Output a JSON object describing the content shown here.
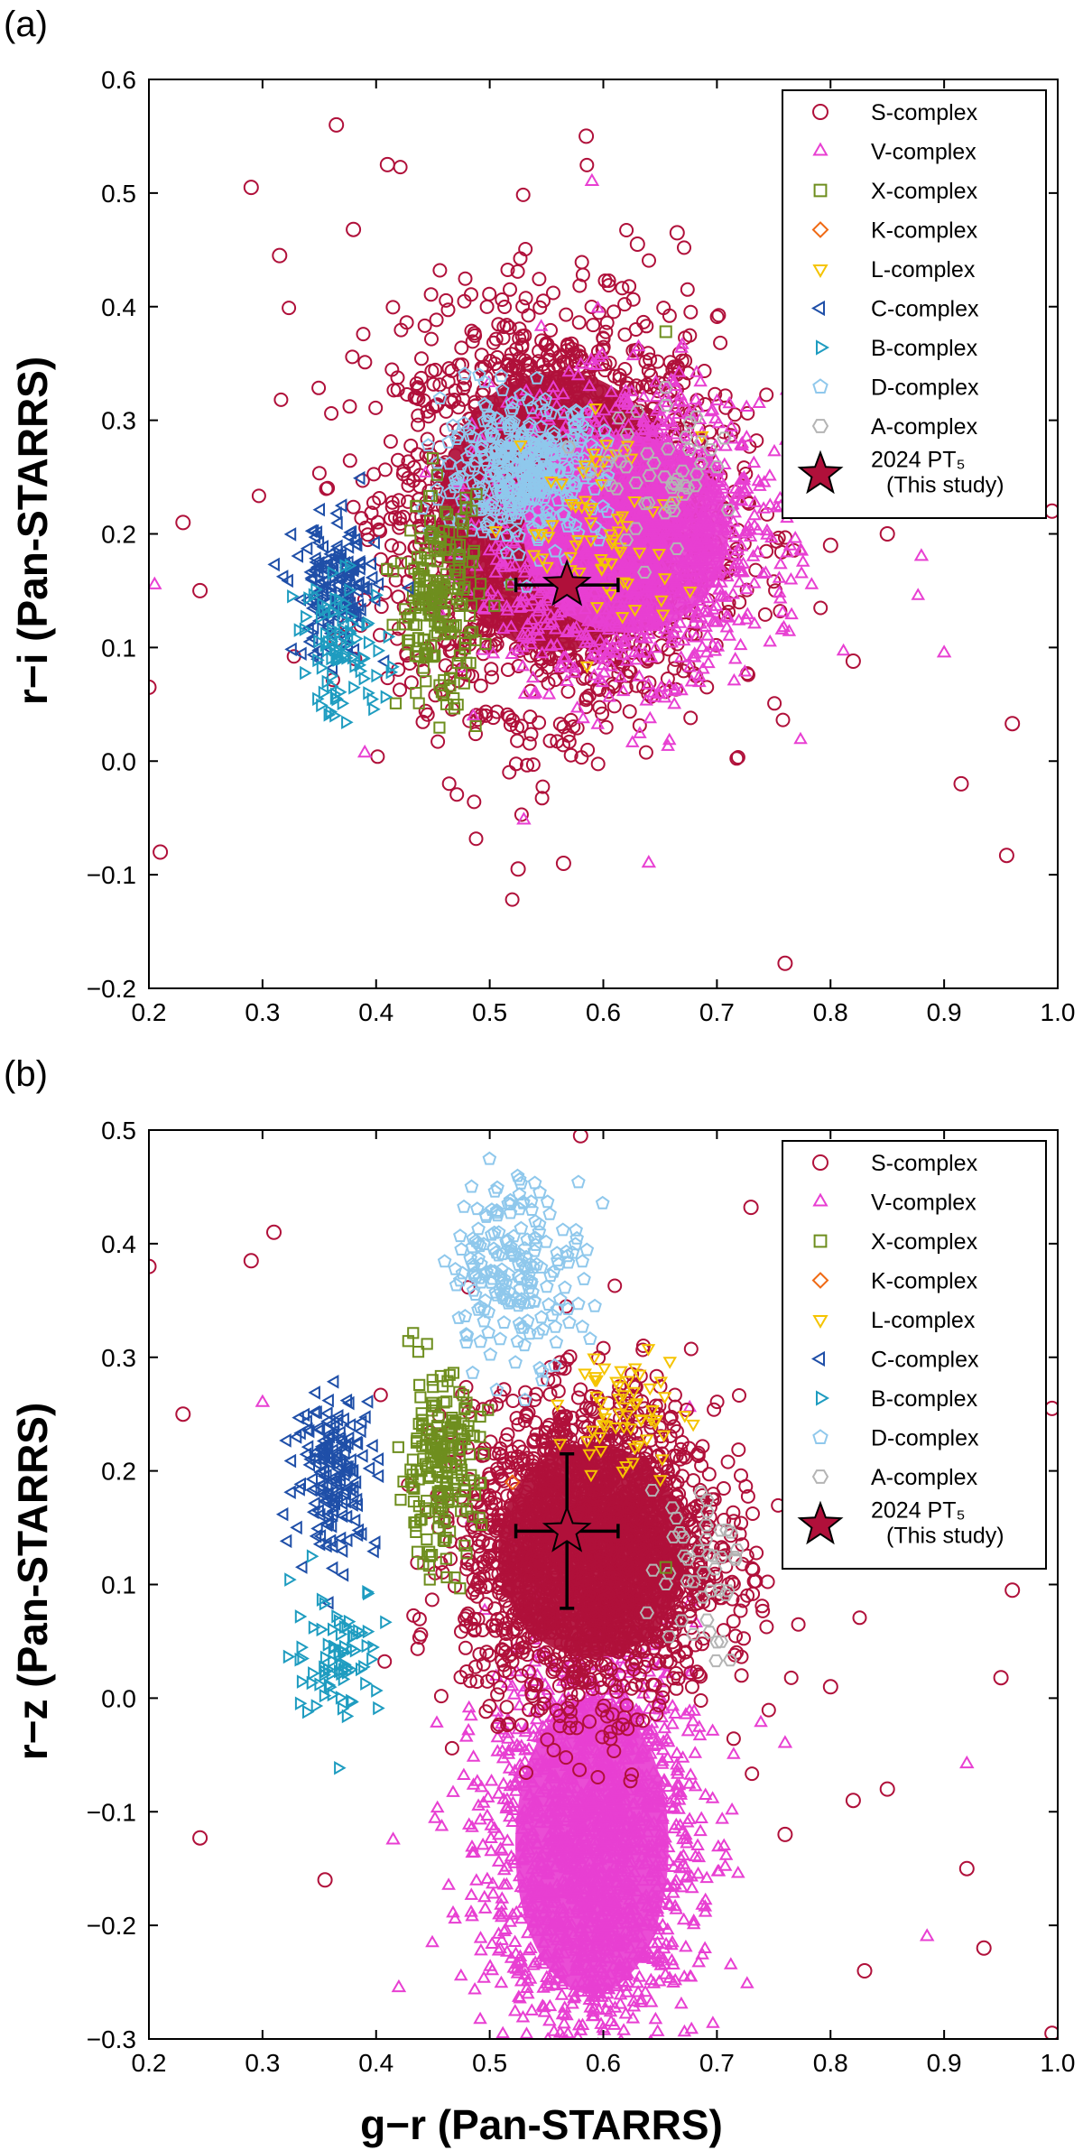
{
  "figure": {
    "panel_labels": [
      "(a)",
      "(b)"
    ],
    "shared_xlabel": "g−r  (Pan-STARRS)"
  },
  "chart_data": [
    {
      "type": "scatter",
      "panel": "(a)",
      "title": "",
      "xlabel": "g−r  (Pan-STARRS)",
      "ylabel": "r−i  (Pan-STARRS)",
      "xlim": [
        0.2,
        1.0
      ],
      "ylim": [
        -0.2,
        0.6
      ],
      "xticks": [
        "0.2",
        "0.3",
        "0.4",
        "0.5",
        "0.6",
        "0.7",
        "0.8",
        "0.9",
        "1.0"
      ],
      "yticks": [
        "−0.2",
        "−0.1",
        "0.0",
        "0.1",
        "0.2",
        "0.3",
        "0.4",
        "0.5",
        "0.6"
      ],
      "grid": false,
      "legend_position": "top-right",
      "legend": [
        {
          "label": "S-complex",
          "marker": "circle",
          "color": "#B0103A"
        },
        {
          "label": "V-complex",
          "marker": "triangle-up",
          "color": "#E83FD2"
        },
        {
          "label": "X-complex",
          "marker": "square",
          "color": "#6E8E1E"
        },
        {
          "label": "K-complex",
          "marker": "diamond",
          "color": "#F06A14"
        },
        {
          "label": "L-complex",
          "marker": "triangle-down",
          "color": "#F5C400"
        },
        {
          "label": "C-complex",
          "marker": "triangle-left",
          "color": "#1F4FA8"
        },
        {
          "label": "B-complex",
          "marker": "triangle-right",
          "color": "#1E9CC0"
        },
        {
          "label": "D-complex",
          "marker": "pentagon",
          "color": "#8FC8EC"
        },
        {
          "label": "A-complex",
          "marker": "hexagon",
          "color": "#B4B4B4"
        },
        {
          "label_line1": "2024 PT₅",
          "label_line2": "(This study)",
          "marker": "star",
          "color": "#B0103A"
        }
      ],
      "highlight": {
        "name": "2024 PT₅",
        "x": 0.568,
        "y": 0.155,
        "xerr": 0.045,
        "yerr": 0.0
      },
      "clusters": [
        {
          "series": "S-complex",
          "marker": "circle",
          "color": "#B0103A",
          "cx": 0.56,
          "cy": 0.22,
          "sx": 0.07,
          "sy": 0.085,
          "n": 2400,
          "dense_core": 0.6
        },
        {
          "series": "V-complex",
          "marker": "triangle-up",
          "color": "#E83FD2",
          "cx": 0.62,
          "cy": 0.2,
          "sx": 0.06,
          "sy": 0.06,
          "n": 1700,
          "dense_core": 0.7
        },
        {
          "series": "D-complex",
          "marker": "pentagon",
          "color": "#8FC8EC",
          "cx": 0.53,
          "cy": 0.255,
          "sx": 0.035,
          "sy": 0.03,
          "n": 380,
          "dense_core": 0
        },
        {
          "series": "L-complex",
          "marker": "triangle-down",
          "color": "#F5C400",
          "cx": 0.6,
          "cy": 0.2,
          "sx": 0.035,
          "sy": 0.05,
          "n": 70,
          "dense_core": 0
        },
        {
          "series": "A-complex",
          "marker": "hexagon",
          "color": "#B4B4B4",
          "cx": 0.66,
          "cy": 0.25,
          "sx": 0.03,
          "sy": 0.03,
          "n": 50,
          "dense_core": 0
        },
        {
          "series": "X-complex",
          "marker": "square",
          "color": "#6E8E1E",
          "cx": 0.455,
          "cy": 0.14,
          "sx": 0.018,
          "sy": 0.045,
          "n": 190,
          "dense_core": 0
        },
        {
          "series": "C-complex",
          "marker": "triangle-left",
          "color": "#1F4FA8",
          "cx": 0.365,
          "cy": 0.15,
          "sx": 0.018,
          "sy": 0.03,
          "n": 160,
          "dense_core": 0
        },
        {
          "series": "B-complex",
          "marker": "triangle-right",
          "color": "#1E9CC0",
          "cx": 0.37,
          "cy": 0.1,
          "sx": 0.02,
          "sy": 0.03,
          "n": 90,
          "dense_core": 0
        }
      ],
      "outliers": [
        {
          "series": "S-complex",
          "marker": "circle",
          "color": "#B0103A",
          "points": [
            [
              0.365,
              0.56
            ],
            [
              0.29,
              0.505
            ],
            [
              0.41,
              0.525
            ],
            [
              0.315,
              0.445
            ],
            [
              0.38,
              0.468
            ],
            [
              0.585,
              0.55
            ],
            [
              0.665,
              0.465
            ],
            [
              0.63,
              0.455
            ],
            [
              0.21,
              -0.08
            ],
            [
              0.2,
              0.065
            ],
            [
              0.245,
              0.15
            ],
            [
              0.23,
              0.21
            ],
            [
              0.525,
              -0.095
            ],
            [
              0.565,
              -0.09
            ],
            [
              0.76,
              -0.178
            ],
            [
              0.955,
              -0.083
            ],
            [
              0.915,
              -0.02
            ],
            [
              0.96,
              0.033
            ],
            [
              0.8,
              0.19
            ],
            [
              0.82,
              0.088
            ],
            [
              0.995,
              0.22
            ],
            [
              0.85,
              0.2
            ]
          ]
        },
        {
          "series": "V-complex",
          "marker": "triangle-up",
          "color": "#E83FD2",
          "points": [
            [
              0.205,
              0.155
            ],
            [
              0.59,
              0.51
            ],
            [
              0.64,
              -0.09
            ],
            [
              0.53,
              -0.052
            ],
            [
              0.39,
              0.007
            ],
            [
              0.9,
              0.095
            ],
            [
              0.88,
              0.18
            ]
          ]
        },
        {
          "series": "X-complex",
          "marker": "square",
          "color": "#6E8E1E",
          "points": [
            [
              0.655,
              0.378
            ]
          ]
        }
      ]
    },
    {
      "type": "scatter",
      "panel": "(b)",
      "title": "",
      "xlabel": "g−r  (Pan-STARRS)",
      "ylabel": "r−z  (Pan-STARRS)",
      "xlim": [
        0.2,
        1.0
      ],
      "ylim": [
        -0.3,
        0.5
      ],
      "xticks": [
        "0.2",
        "0.3",
        "0.4",
        "0.5",
        "0.6",
        "0.7",
        "0.8",
        "0.9",
        "1.0"
      ],
      "yticks": [
        "−0.3",
        "−0.2",
        "−0.1",
        "0.0",
        "0.1",
        "0.2",
        "0.3",
        "0.4",
        "0.5"
      ],
      "grid": false,
      "legend_position": "top-right",
      "legend": [
        {
          "label": "S-complex",
          "marker": "circle",
          "color": "#B0103A"
        },
        {
          "label": "V-complex",
          "marker": "triangle-up",
          "color": "#E83FD2"
        },
        {
          "label": "X-complex",
          "marker": "square",
          "color": "#6E8E1E"
        },
        {
          "label": "K-complex",
          "marker": "diamond",
          "color": "#F06A14"
        },
        {
          "label": "L-complex",
          "marker": "triangle-down",
          "color": "#F5C400"
        },
        {
          "label": "C-complex",
          "marker": "triangle-left",
          "color": "#1F4FA8"
        },
        {
          "label": "B-complex",
          "marker": "triangle-right",
          "color": "#1E9CC0"
        },
        {
          "label": "D-complex",
          "marker": "pentagon",
          "color": "#8FC8EC"
        },
        {
          "label": "A-complex",
          "marker": "hexagon",
          "color": "#B4B4B4"
        },
        {
          "label_line1": "2024 PT₅",
          "label_line2": "(This study)",
          "marker": "star",
          "color": "#B0103A"
        }
      ],
      "highlight": {
        "name": "2024 PT₅",
        "x": 0.568,
        "y": 0.147,
        "xerr": 0.045,
        "yerr": 0.068
      },
      "clusters": [
        {
          "series": "V-complex",
          "marker": "triangle-up",
          "color": "#E83FD2",
          "cx": 0.59,
          "cy": -0.13,
          "sx": 0.045,
          "sy": 0.09,
          "n": 1700,
          "dense_core": 0.75
        },
        {
          "series": "S-complex",
          "marker": "circle",
          "color": "#B0103A",
          "cx": 0.59,
          "cy": 0.13,
          "sx": 0.055,
          "sy": 0.065,
          "n": 2200,
          "dense_core": 0.8
        },
        {
          "series": "D-complex",
          "marker": "pentagon",
          "color": "#8FC8EC",
          "cx": 0.525,
          "cy": 0.38,
          "sx": 0.03,
          "sy": 0.04,
          "n": 200,
          "dense_core": 0
        },
        {
          "series": "L-complex",
          "marker": "triangle-down",
          "color": "#F5C400",
          "cx": 0.62,
          "cy": 0.25,
          "sx": 0.025,
          "sy": 0.03,
          "n": 60,
          "dense_core": 0
        },
        {
          "series": "A-complex",
          "marker": "hexagon",
          "color": "#B4B4B4",
          "cx": 0.68,
          "cy": 0.12,
          "sx": 0.02,
          "sy": 0.04,
          "n": 45,
          "dense_core": 0
        },
        {
          "series": "X-complex",
          "marker": "square",
          "color": "#6E8E1E",
          "cx": 0.455,
          "cy": 0.2,
          "sx": 0.018,
          "sy": 0.04,
          "n": 200,
          "dense_core": 0
        },
        {
          "series": "C-complex",
          "marker": "triangle-left",
          "color": "#1F4FA8",
          "cx": 0.365,
          "cy": 0.2,
          "sx": 0.018,
          "sy": 0.035,
          "n": 170,
          "dense_core": 0
        },
        {
          "series": "B-complex",
          "marker": "triangle-right",
          "color": "#1E9CC0",
          "cx": 0.365,
          "cy": 0.04,
          "sx": 0.02,
          "sy": 0.03,
          "n": 80,
          "dense_core": 0
        }
      ],
      "outliers": [
        {
          "series": "S-complex",
          "marker": "circle",
          "color": "#B0103A",
          "points": [
            [
              0.58,
              0.495
            ],
            [
              0.29,
              0.385
            ],
            [
              0.31,
              0.41
            ],
            [
              0.73,
              0.432
            ],
            [
              0.2,
              0.38
            ],
            [
              0.23,
              0.25
            ],
            [
              0.245,
              -0.123
            ],
            [
              0.355,
              -0.16
            ],
            [
              0.96,
              0.095
            ],
            [
              0.95,
              0.018
            ],
            [
              0.92,
              -0.15
            ],
            [
              0.935,
              -0.22
            ],
            [
              0.83,
              -0.24
            ],
            [
              0.85,
              -0.08
            ],
            [
              0.8,
              0.01
            ],
            [
              0.76,
              -0.12
            ],
            [
              0.995,
              0.255
            ],
            [
              0.82,
              -0.09
            ],
            [
              0.995,
              -0.295
            ]
          ]
        },
        {
          "series": "V-complex",
          "marker": "triangle-up",
          "color": "#E83FD2",
          "points": [
            [
              0.415,
              -0.125
            ],
            [
              0.42,
              -0.255
            ],
            [
              0.885,
              -0.21
            ],
            [
              0.92,
              -0.058
            ],
            [
              0.76,
              -0.04
            ],
            [
              0.3,
              0.26
            ]
          ]
        },
        {
          "series": "K-complex",
          "marker": "diamond",
          "color": "#F06A14",
          "points": [
            [
              0.52,
              0.19
            ]
          ]
        },
        {
          "series": "X-complex",
          "marker": "square",
          "color": "#6E8E1E",
          "points": [
            [
              0.655,
              0.115
            ]
          ]
        }
      ]
    }
  ]
}
